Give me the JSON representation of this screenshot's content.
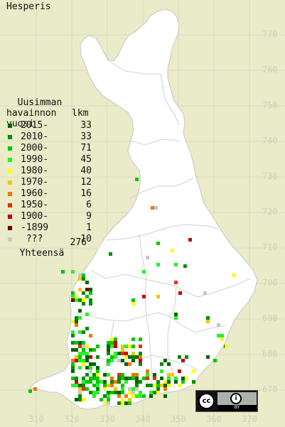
{
  "title": "Hesperis",
  "legend": {
    "heading": "Uusimman\nhavainnon\nvuosi",
    "count_heading": "lkm",
    "rows": [
      {
        "label": "2015-",
        "count": "33",
        "color": "#006400"
      },
      {
        "label": "2010-",
        "count": "33",
        "color": "#008c00"
      },
      {
        "label": "2000-",
        "count": "71",
        "color": "#00c800"
      },
      {
        "label": "1990-",
        "count": "45",
        "color": "#28f028"
      },
      {
        "label": "1980-",
        "count": "40",
        "color": "#ffff00"
      },
      {
        "label": "1970-",
        "count": "12",
        "color": "#f0c800"
      },
      {
        "label": "1960-",
        "count": "16",
        "color": "#f07800"
      },
      {
        "label": "1950-",
        "count": "6",
        "color": "#e63200"
      },
      {
        "label": "1900-",
        "count": "9",
        "color": "#c80000"
      },
      {
        "label": "-1899",
        "count": "1",
        "color": "#780000"
      },
      {
        "label": " ???",
        "count": "10",
        "color": "#c8c8c8"
      }
    ],
    "total_label": "Yhteensä",
    "total_count": "276"
  },
  "grid": {
    "y_labels": [
      "770",
      "760",
      "750",
      "740",
      "730",
      "720",
      "710",
      "700",
      "690",
      "680",
      "670"
    ],
    "x_labels": [
      "310",
      "320",
      "330",
      "340",
      "350",
      "360",
      "370"
    ]
  },
  "license": {
    "cc": "cc",
    "by_icon": "i",
    "by_text": "BY"
  },
  "colors": {
    "background": "#e9ebc9",
    "land": "#ffffff",
    "grid": "#d6d8bc",
    "border": "#c8c8c8"
  }
}
